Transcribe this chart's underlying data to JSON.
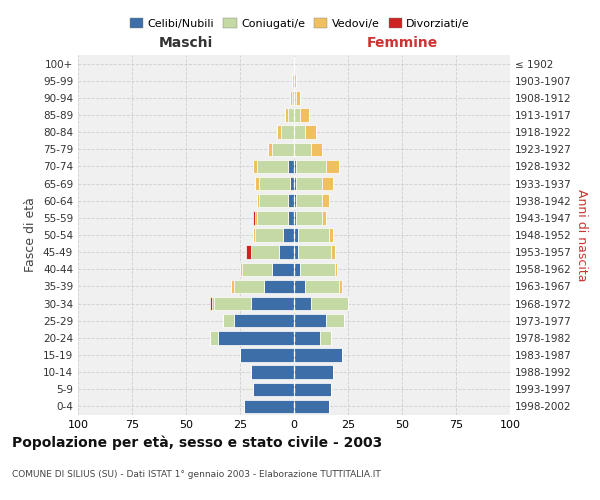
{
  "age_groups": [
    "0-4",
    "5-9",
    "10-14",
    "15-19",
    "20-24",
    "25-29",
    "30-34",
    "35-39",
    "40-44",
    "45-49",
    "50-54",
    "55-59",
    "60-64",
    "65-69",
    "70-74",
    "75-79",
    "80-84",
    "85-89",
    "90-94",
    "95-99",
    "100+"
  ],
  "birth_years": [
    "1998-2002",
    "1993-1997",
    "1988-1992",
    "1983-1987",
    "1978-1982",
    "1973-1977",
    "1968-1972",
    "1963-1967",
    "1958-1962",
    "1953-1957",
    "1948-1952",
    "1943-1947",
    "1938-1942",
    "1933-1937",
    "1928-1932",
    "1923-1927",
    "1918-1922",
    "1913-1917",
    "1908-1912",
    "1903-1907",
    "≤ 1902"
  ],
  "males": {
    "celibi": [
      23,
      19,
      20,
      25,
      35,
      28,
      20,
      14,
      10,
      7,
      5,
      3,
      3,
      2,
      3,
      0,
      0,
      0,
      0,
      0,
      0
    ],
    "coniugati": [
      0,
      0,
      0,
      0,
      4,
      5,
      17,
      14,
      14,
      13,
      13,
      14,
      13,
      14,
      14,
      10,
      6,
      3,
      1,
      1,
      0
    ],
    "vedovi": [
      0,
      0,
      0,
      0,
      0,
      0,
      1,
      1,
      1,
      0,
      1,
      1,
      1,
      2,
      2,
      2,
      2,
      1,
      1,
      0,
      0
    ],
    "divorziati": [
      0,
      0,
      0,
      0,
      0,
      0,
      1,
      0,
      0,
      2,
      0,
      1,
      0,
      0,
      0,
      0,
      0,
      0,
      0,
      0,
      0
    ]
  },
  "females": {
    "nubili": [
      16,
      17,
      18,
      22,
      12,
      15,
      8,
      5,
      3,
      2,
      2,
      1,
      1,
      1,
      1,
      0,
      0,
      0,
      0,
      0,
      0
    ],
    "coniugate": [
      0,
      0,
      0,
      0,
      5,
      8,
      17,
      16,
      16,
      15,
      14,
      12,
      12,
      12,
      14,
      8,
      5,
      3,
      1,
      0,
      0
    ],
    "vedove": [
      0,
      0,
      0,
      0,
      0,
      0,
      0,
      1,
      1,
      2,
      2,
      2,
      3,
      5,
      6,
      5,
      5,
      4,
      2,
      1,
      0
    ],
    "divorziate": [
      0,
      0,
      0,
      0,
      0,
      0,
      0,
      0,
      0,
      0,
      0,
      0,
      0,
      0,
      0,
      0,
      0,
      0,
      0,
      0,
      0
    ]
  },
  "color_celibi": "#3d6ea8",
  "color_coniugati": "#c5d9a4",
  "color_vedovi": "#f0c060",
  "color_divorziati": "#cc2222",
  "xlim": 100,
  "title_main": "Popolazione per età, sesso e stato civile - 2003",
  "title_sub": "COMUNE DI SILIUS (SU) - Dati ISTAT 1° gennaio 2003 - Elaborazione TUTTITALIA.IT",
  "ylabel_left": "Fasce di età",
  "ylabel_right": "Anni di nascita",
  "xlabel_left": "Maschi",
  "xlabel_right": "Femmine",
  "bg_color": "#f0f0f0",
  "grid_color": "#cccccc"
}
